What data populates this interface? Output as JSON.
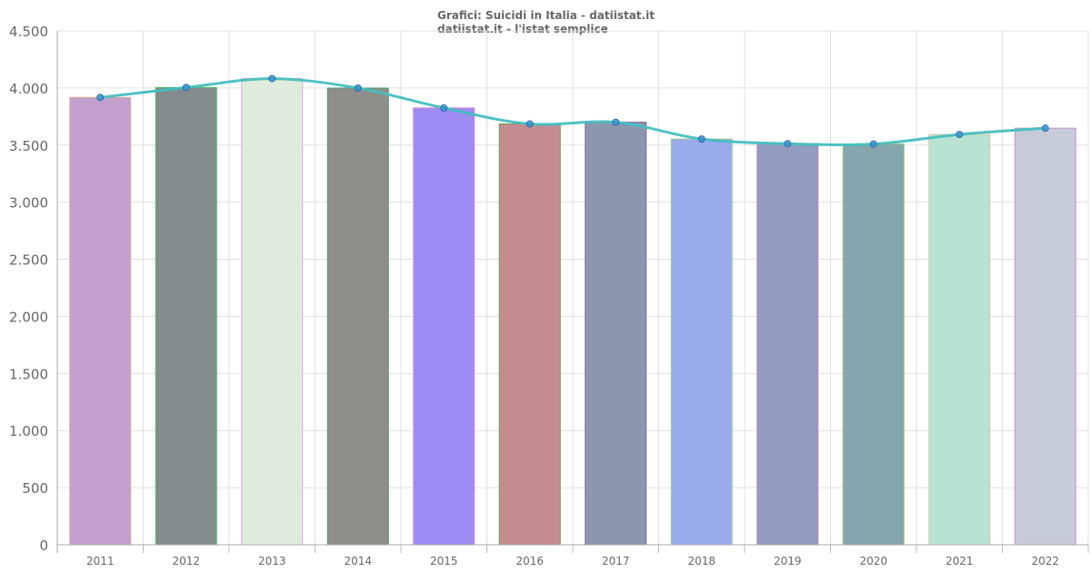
{
  "chart_data": {
    "type": "bar",
    "title": "Grafici: Suicidi in Italia - datiistat.it",
    "subtitle": "datiistat.it - l'istat semplice",
    "xlabel": "",
    "ylabel": "",
    "ylim": [
      0,
      4500
    ],
    "yticks": [
      0,
      500,
      1000,
      1500,
      2000,
      2500,
      3000,
      3500,
      4000,
      4500
    ],
    "ytick_labels": [
      "0",
      "500",
      "1.000",
      "1.500",
      "2.000",
      "2.500",
      "3.000",
      "3.500",
      "4.000",
      "4.500"
    ],
    "grid": true,
    "categories": [
      "2011",
      "2012",
      "2013",
      "2014",
      "2015",
      "2016",
      "2017",
      "2018",
      "2019",
      "2020",
      "2021",
      "2022"
    ],
    "values": [
      3917,
      4004,
      4082,
      3999,
      3825,
      3685,
      3700,
      3553,
      3512,
      3509,
      3593,
      3648
    ],
    "bar_colors": [
      "#c39fcd",
      "#838c8c",
      "#e0ecdb",
      "#908e89",
      "#9e8cf4",
      "#c48c91",
      "#8b97ad",
      "#9aabec",
      "#929bc0",
      "#85a6ad",
      "#b8e3d2",
      "#c6cbd9"
    ],
    "bar_borders": [
      "#d8b09a",
      "#4fb86a",
      "#d9a6e0",
      "#4a9a76",
      "#d086d8",
      "#6a9a56",
      "#7a6a9a",
      "#9ad08a",
      "#c080d0",
      "#98c080",
      "#d8c8a0",
      "#c890d0"
    ],
    "line_color": "#45bfbf",
    "point_color": "#3a8fd0"
  }
}
